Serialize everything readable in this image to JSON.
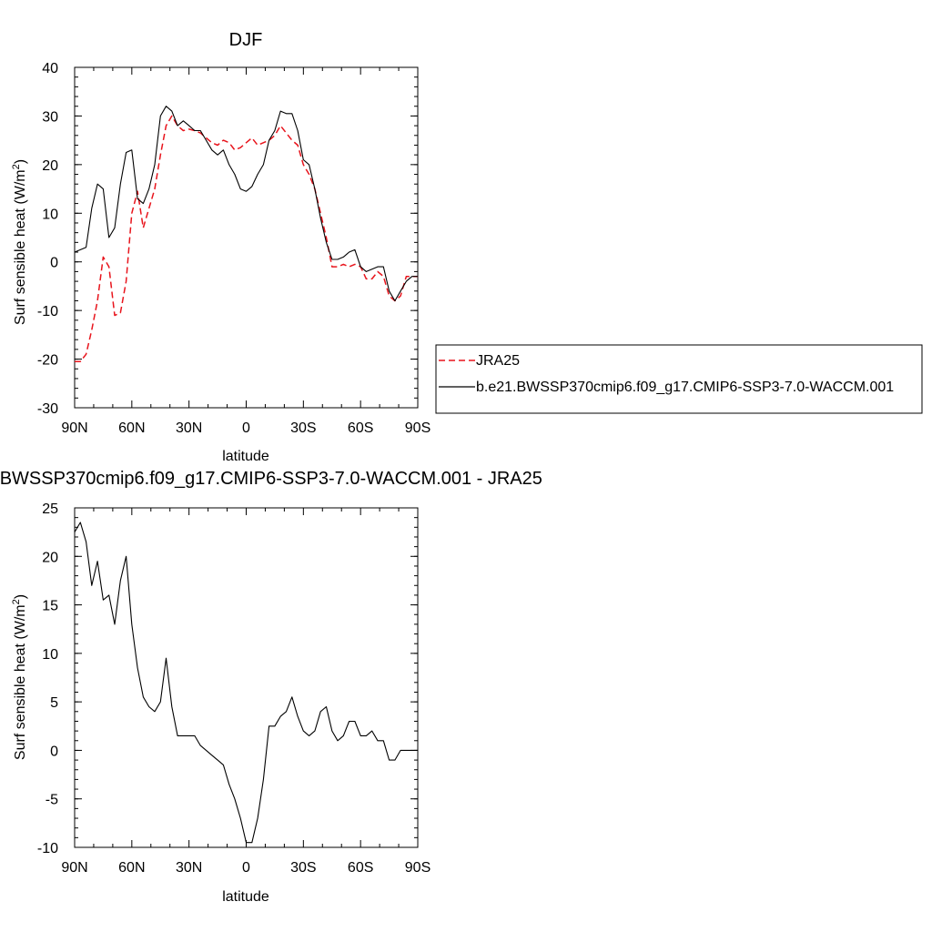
{
  "chart_data": [
    {
      "type": "line",
      "title": "DJF",
      "xlabel": "latitude",
      "ylabel": "Surf sensible heat (W/m²)",
      "xlim": [
        -90,
        90
      ],
      "ylim": [
        -30,
        40
      ],
      "x_ticks": [
        "90N",
        "60N",
        "30N",
        "0",
        "30S",
        "60S",
        "90S"
      ],
      "y_ticks": [
        "-30",
        "-20",
        "-10",
        "0",
        "10",
        "20",
        "30",
        "40"
      ],
      "series": [
        {
          "name": "JRA25",
          "color": "#e8141c",
          "dash": "dashed",
          "x": [
            -90,
            -87,
            -84,
            -81,
            -78,
            -75,
            -72,
            -69,
            -66,
            -63,
            -60,
            -57,
            -54,
            -51,
            -48,
            -45,
            -42,
            -39,
            -36,
            -33,
            -30,
            -27,
            -24,
            -21,
            -18,
            -15,
            -12,
            -9,
            -6,
            -3,
            0,
            3,
            6,
            9,
            12,
            15,
            18,
            21,
            24,
            27,
            30,
            33,
            36,
            39,
            42,
            45,
            48,
            51,
            54,
            57,
            60,
            63,
            66,
            69,
            72,
            75,
            78,
            81,
            84,
            87,
            90
          ],
          "y": [
            -20.5,
            -20.5,
            -19,
            -14,
            -8,
            1,
            -1,
            -11,
            -10.5,
            -4,
            10,
            14.5,
            7,
            11,
            15,
            22,
            28,
            30,
            28,
            27,
            27.3,
            27,
            26.5,
            25.5,
            24.5,
            24,
            25,
            24.5,
            23,
            23.5,
            24.5,
            25.5,
            24,
            24.5,
            25,
            26,
            28,
            26.5,
            25,
            24,
            20,
            18,
            15,
            10,
            5,
            -1,
            -1,
            -0.5,
            -1,
            -0.5,
            -1,
            -3.5,
            -3.5,
            -2,
            -3,
            -7,
            -8,
            -7,
            -3,
            -3,
            -3
          ]
        },
        {
          "name": "b.e21.BWSSP370cmip6.f09_g17.CMIP6-SSP3-7.0-WACCM.001",
          "color": "#000000",
          "dash": "solid",
          "x": [
            -90,
            -87,
            -84,
            -81,
            -78,
            -75,
            -72,
            -69,
            -66,
            -63,
            -60,
            -57,
            -54,
            -51,
            -48,
            -45,
            -42,
            -39,
            -36,
            -33,
            -30,
            -27,
            -24,
            -21,
            -18,
            -15,
            -12,
            -9,
            -6,
            -3,
            0,
            3,
            6,
            9,
            12,
            15,
            18,
            21,
            24,
            27,
            30,
            33,
            36,
            39,
            42,
            45,
            48,
            51,
            54,
            57,
            60,
            63,
            66,
            69,
            72,
            75,
            78,
            81,
            84,
            87,
            90
          ],
          "y": [
            2,
            2.5,
            3,
            11,
            16,
            15,
            5,
            7,
            16,
            22.5,
            23,
            13,
            12,
            15,
            20,
            30,
            32,
            31,
            28,
            29,
            28,
            27,
            27,
            25,
            23,
            22,
            23,
            20,
            18,
            15,
            14.5,
            15.5,
            18,
            20,
            25,
            27,
            31,
            30.5,
            30.5,
            27,
            21,
            20,
            15,
            9,
            4,
            0.5,
            0.5,
            1,
            2,
            2.5,
            -1,
            -2,
            -1.5,
            -1,
            -1,
            -6,
            -8,
            -6,
            -4,
            -3,
            -3
          ]
        }
      ]
    },
    {
      "type": "line",
      "title": "b.e21.BWSSP370cmip6.f09_g17.CMIP6-SSP3-7.0-WACCM.001 - JRA25",
      "xlabel": "latitude",
      "ylabel": "Surf sensible heat (W/m²)",
      "xlim": [
        -90,
        90
      ],
      "ylim": [
        -10,
        25
      ],
      "x_ticks": [
        "90N",
        "60N",
        "30N",
        "0",
        "30S",
        "60S",
        "90S"
      ],
      "y_ticks": [
        "-10",
        "-5",
        "0",
        "5",
        "10",
        "15",
        "20",
        "25"
      ],
      "series": [
        {
          "color": "#000000",
          "dash": "solid",
          "x": [
            -90,
            -87,
            -84,
            -81,
            -78,
            -75,
            -72,
            -69,
            -66,
            -63,
            -60,
            -57,
            -54,
            -51,
            -48,
            -45,
            -42,
            -39,
            -36,
            -33,
            -30,
            -27,
            -24,
            -21,
            -18,
            -15,
            -12,
            -9,
            -6,
            -3,
            0,
            3,
            6,
            9,
            12,
            15,
            18,
            21,
            24,
            27,
            30,
            33,
            36,
            39,
            42,
            45,
            48,
            51,
            54,
            57,
            60,
            63,
            66,
            69,
            72,
            75,
            78,
            81,
            84,
            87,
            90
          ],
          "y": [
            22.5,
            23.5,
            21.5,
            17,
            19.5,
            15.5,
            16,
            13,
            17.5,
            20,
            13,
            8.5,
            5.5,
            4.5,
            4,
            5,
            9.5,
            4.5,
            1.5,
            1.5,
            1.5,
            1.5,
            0.5,
            0,
            -0.5,
            -1,
            -1.5,
            -3.5,
            -5,
            -7,
            -9.5,
            -9.5,
            -7,
            -3,
            2.5,
            2.5,
            3.5,
            4,
            5.5,
            3.5,
            2,
            1.5,
            2,
            4,
            4.5,
            2,
            1,
            1.5,
            3,
            3,
            1.5,
            1.5,
            2,
            1,
            1,
            -1,
            -1,
            0,
            0,
            0,
            0
          ]
        }
      ]
    }
  ],
  "legend": {
    "items": [
      {
        "label": "JRA25"
      },
      {
        "label": "b.e21.BWSSP370cmip6.f09_g17.CMIP6-SSP3-7.0-WACCM.001"
      }
    ]
  }
}
